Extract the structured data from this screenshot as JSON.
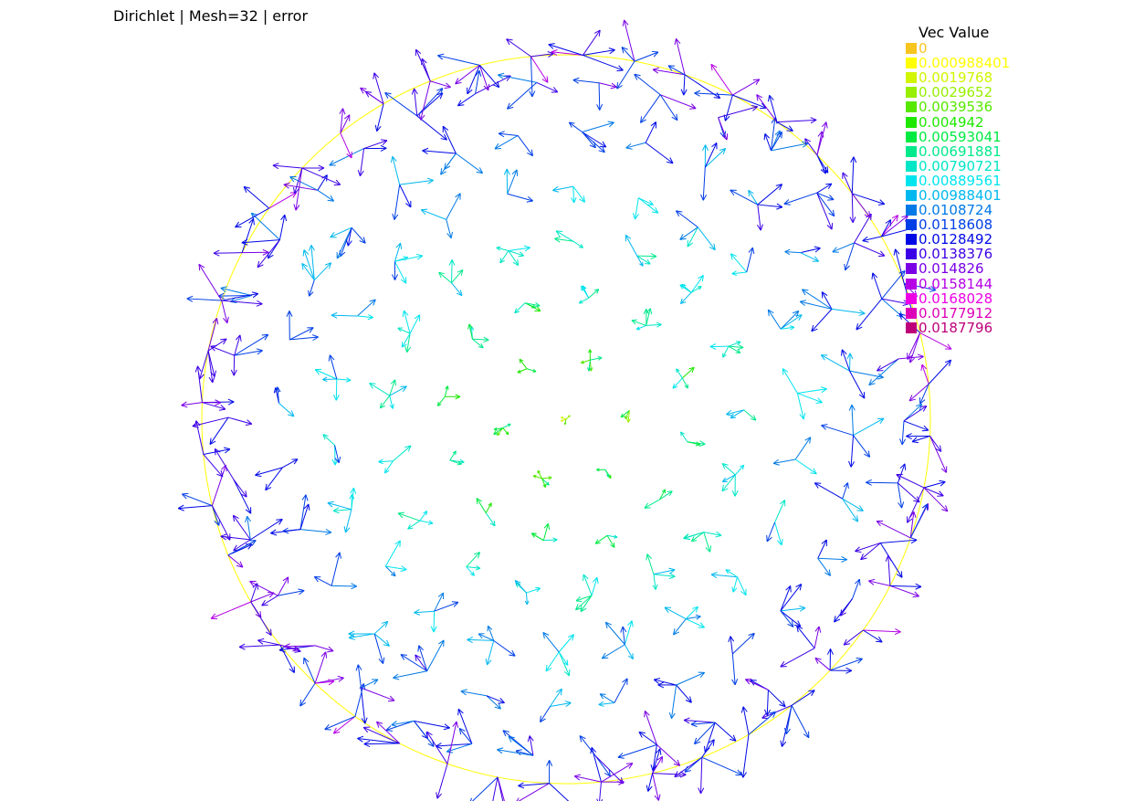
{
  "title": "Dirichlet | Mesh=32 | error",
  "chart_data": {
    "type": "vector_field",
    "title": "Dirichlet | Mesh=32 | error",
    "domain": {
      "shape": "circle",
      "boundary_color": "#ffff00"
    },
    "legend": {
      "title": "Vec Value",
      "placement": "top-right",
      "entries": [
        {
          "label": "0",
          "color": "#f7c520"
        },
        {
          "label": "0.000988401",
          "color": "#ffff00"
        },
        {
          "label": "0.0019768",
          "color": "#d2f500"
        },
        {
          "label": "0.0029652",
          "color": "#98ef00"
        },
        {
          "label": "0.0039536",
          "color": "#57e800"
        },
        {
          "label": "0.004942",
          "color": "#1ee800"
        },
        {
          "label": "0.00593041",
          "color": "#00ea42"
        },
        {
          "label": "0.00691881",
          "color": "#00e98b"
        },
        {
          "label": "0.00790721",
          "color": "#00e6c6"
        },
        {
          "label": "0.00889561",
          "color": "#00e4ee"
        },
        {
          "label": "0.00988401",
          "color": "#00b8ef"
        },
        {
          "label": "0.0108724",
          "color": "#0079e6"
        },
        {
          "label": "0.0118608",
          "color": "#003fe6"
        },
        {
          "label": "0.0128492",
          "color": "#0008e6"
        },
        {
          "label": "0.0138376",
          "color": "#3c00e6"
        },
        {
          "label": "0.014826",
          "color": "#7a00e6"
        },
        {
          "label": "0.0158144",
          "color": "#b600e6"
        },
        {
          "label": "0.0168028",
          "color": "#ee00e6"
        },
        {
          "label": "0.0177912",
          "color": "#dd00b8"
        },
        {
          "label": "0.0187796",
          "color": "#bd0079"
        }
      ]
    },
    "vector_magnitude_range": [
      0,
      0.0187796
    ]
  }
}
